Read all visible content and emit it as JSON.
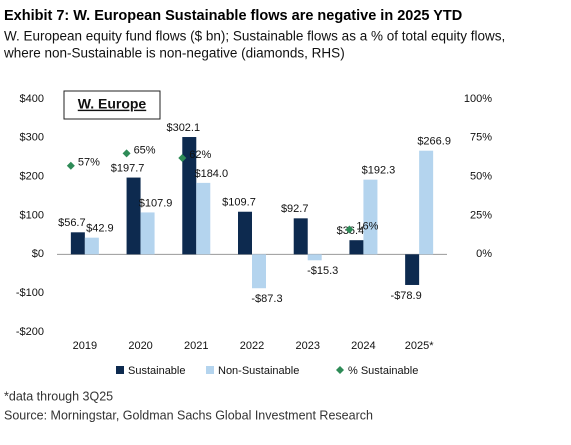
{
  "chart_data": {
    "type": "bar",
    "title": "Exhibit 7: W. European Sustainable flows are negative in 2025 YTD",
    "subtitle": [
      "W. European equity fund flows ($ bn); Sustainable flows as a % of total equity flows,",
      "where non-Sustainable is non-negative (diamonds, RHS)"
    ],
    "inset_label": "W. Europe",
    "categories": [
      "2019",
      "2020",
      "2021",
      "2022",
      "2023",
      "2024",
      "2025*"
    ],
    "series": [
      {
        "name": "Sustainable",
        "color": "#0d2a4f",
        "values": [
          56.7,
          197.7,
          302.1,
          109.7,
          92.7,
          36.4,
          -78.9
        ],
        "value_labels": [
          "$56.7",
          "$197.7",
          "$302.1",
          "$109.7",
          "$92.7",
          "$36.4",
          "-$78.9"
        ]
      },
      {
        "name": "Non-Sustainable",
        "color": "#b4d4ee",
        "values": [
          42.9,
          107.9,
          184.0,
          -87.3,
          -15.3,
          192.3,
          266.9
        ],
        "value_labels": [
          "$42.9",
          "$107.9",
          "$184.0",
          "-$87.3",
          "-$15.3",
          "$192.3",
          "$266.9"
        ]
      },
      {
        "name": "% Sustainable",
        "color": "#2e8b57",
        "axis": "y2",
        "marker": "diamond",
        "values": [
          57,
          65,
          62,
          null,
          null,
          16,
          null
        ],
        "value_labels": [
          "57%",
          "65%",
          "62%",
          null,
          null,
          "16%",
          null
        ]
      }
    ],
    "ylim": [
      -200,
      400
    ],
    "yticks": [
      {
        "value": -200,
        "label": "-$200"
      },
      {
        "value": -100,
        "label": "-$100"
      },
      {
        "value": 0,
        "label": "$0"
      },
      {
        "value": 100,
        "label": "$100"
      },
      {
        "value": 200,
        "label": "$200"
      },
      {
        "value": 300,
        "label": "$300"
      },
      {
        "value": 400,
        "label": "$400"
      }
    ],
    "y2lim": [
      -50,
      100
    ],
    "y2ticks": [
      {
        "value": 0,
        "label": "0%"
      },
      {
        "value": 25,
        "label": "25%"
      },
      {
        "value": 50,
        "label": "50%"
      },
      {
        "value": 75,
        "label": "75%"
      },
      {
        "value": 100,
        "label": "100%"
      }
    ],
    "grid": false,
    "legend": "bottom",
    "footnote": "*data through 3Q25",
    "source": "Source: Morningstar, Goldman Sachs Global Investment Research"
  }
}
